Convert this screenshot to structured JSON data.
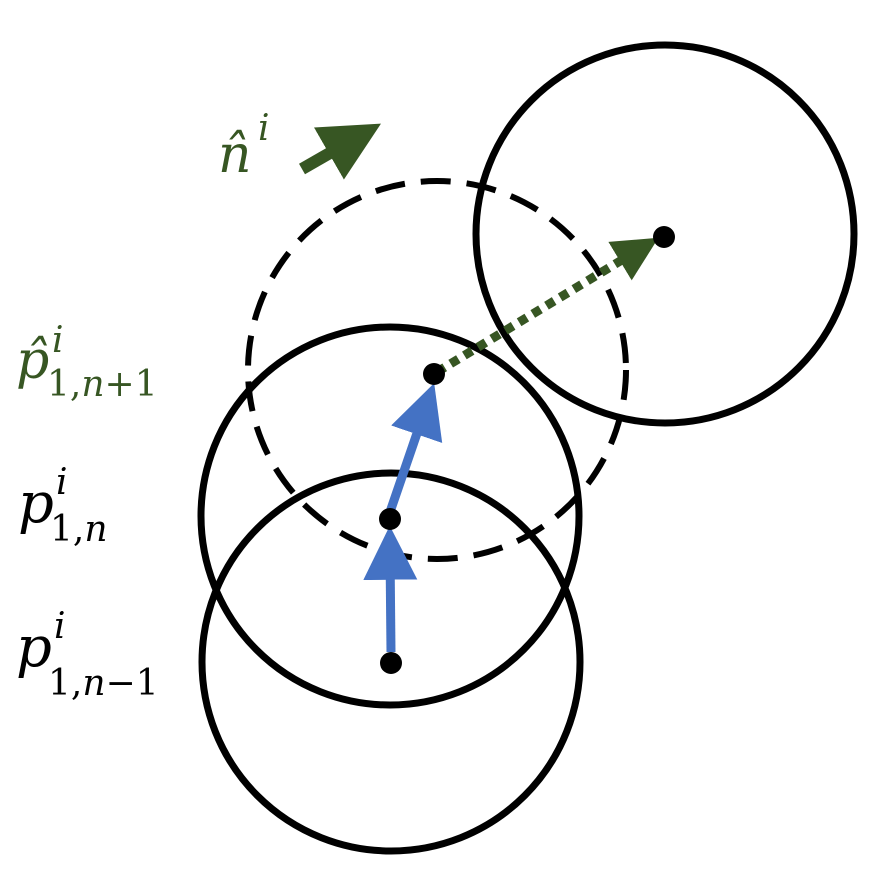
{
  "labels": {
    "n_hat": {
      "base": "n̂",
      "sup": "i"
    },
    "p_hat_next": {
      "base": "p̂",
      "sup": "i",
      "sub_num": "1,",
      "sub_var": "n",
      "sub_rest": "+1"
    },
    "p_current": {
      "base": "p",
      "sup": "i",
      "sub_num": "1,",
      "sub_var": "n",
      "sub_rest": ""
    },
    "p_previous": {
      "base": "p",
      "sup": "i",
      "sub_num": "1,",
      "sub_var": "n",
      "sub_rest": "−1"
    }
  },
  "colors": {
    "stroke": "#000000",
    "blue_arrow": "#4472C4",
    "green": "#375623"
  },
  "circles": [
    {
      "name": "circle-previous",
      "style": "solid"
    },
    {
      "name": "circle-current",
      "style": "solid"
    },
    {
      "name": "circle-predicted",
      "style": "dashed"
    },
    {
      "name": "circle-target",
      "style": "solid"
    }
  ]
}
